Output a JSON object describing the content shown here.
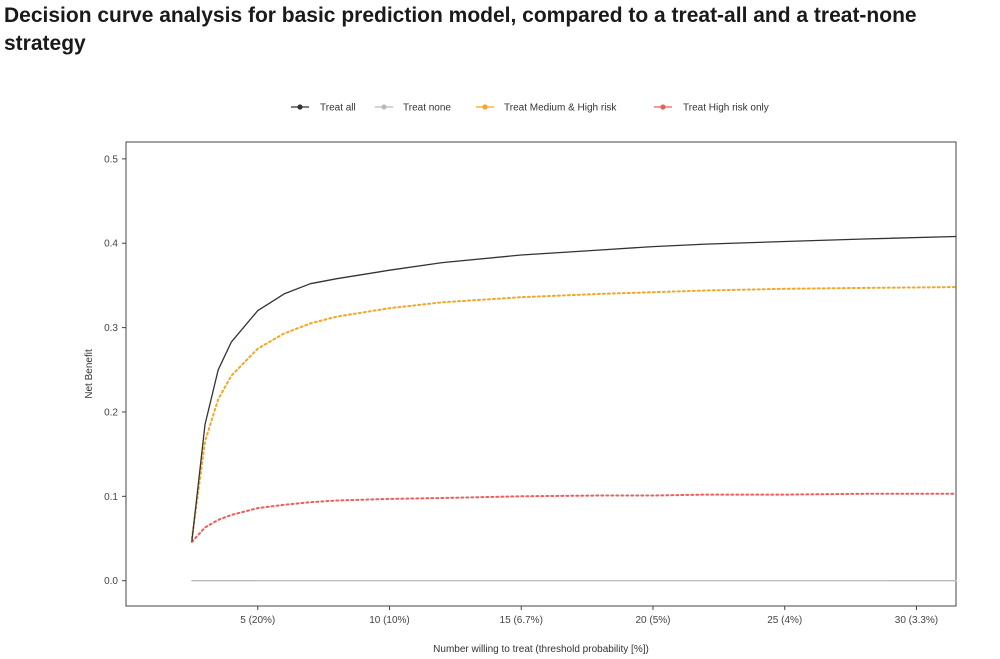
{
  "chart_data": {
    "type": "line",
    "title": "Decision curve analysis for basic prediction model, compared to a treat-all and a treat-none strategy",
    "xlabel": "Number willing to treat (threshold probability [%])",
    "ylabel": "Net Benefit",
    "xlim": [
      0,
      31.5
    ],
    "ylim": [
      -0.03,
      0.52
    ],
    "x_ticks": [
      {
        "value": 5,
        "label": "5 (20%)"
      },
      {
        "value": 10,
        "label": "10 (10%)"
      },
      {
        "value": 15,
        "label": "15 (6.7%)"
      },
      {
        "value": 20,
        "label": "20 (5%)"
      },
      {
        "value": 25,
        "label": "25 (4%)"
      },
      {
        "value": 30,
        "label": "30 (3.3%)"
      }
    ],
    "y_ticks": [
      {
        "value": 0.0,
        "label": "0.0"
      },
      {
        "value": 0.1,
        "label": "0.1"
      },
      {
        "value": 0.2,
        "label": "0.2"
      },
      {
        "value": 0.3,
        "label": "0.3"
      },
      {
        "value": 0.4,
        "label": "0.4"
      },
      {
        "value": 0.5,
        "label": "0.5"
      }
    ],
    "grid": false,
    "legend_position": "top",
    "x": [
      2.5,
      3,
      3.5,
      4,
      5,
      6,
      7,
      8,
      10,
      12,
      15,
      18,
      20,
      22,
      25,
      28,
      31.5
    ],
    "series": [
      {
        "name": "Treat all",
        "color": "#333333",
        "dash": "solid",
        "values": [
          0.047,
          0.185,
          0.25,
          0.283,
          0.32,
          0.34,
          0.352,
          0.358,
          0.368,
          0.377,
          0.386,
          0.392,
          0.396,
          0.399,
          0.402,
          0.405,
          0.408
        ]
      },
      {
        "name": "Treat none",
        "color": "#bbbbbb",
        "dash": "solid",
        "values": [
          0,
          0,
          0,
          0,
          0,
          0,
          0,
          0,
          0,
          0,
          0,
          0,
          0,
          0,
          0,
          0,
          0
        ]
      },
      {
        "name": "Treat Medium & High risk",
        "color": "#f5a623",
        "dash": "dotted",
        "values": [
          0.05,
          0.165,
          0.215,
          0.243,
          0.275,
          0.293,
          0.305,
          0.313,
          0.323,
          0.33,
          0.336,
          0.34,
          0.342,
          0.344,
          0.346,
          0.347,
          0.348
        ]
      },
      {
        "name": "Treat High risk only",
        "color": "#f25c5c",
        "dash": "dotted",
        "values": [
          0.046,
          0.063,
          0.072,
          0.078,
          0.086,
          0.09,
          0.093,
          0.095,
          0.097,
          0.098,
          0.1,
          0.101,
          0.101,
          0.102,
          0.102,
          0.103,
          0.103
        ]
      }
    ]
  }
}
